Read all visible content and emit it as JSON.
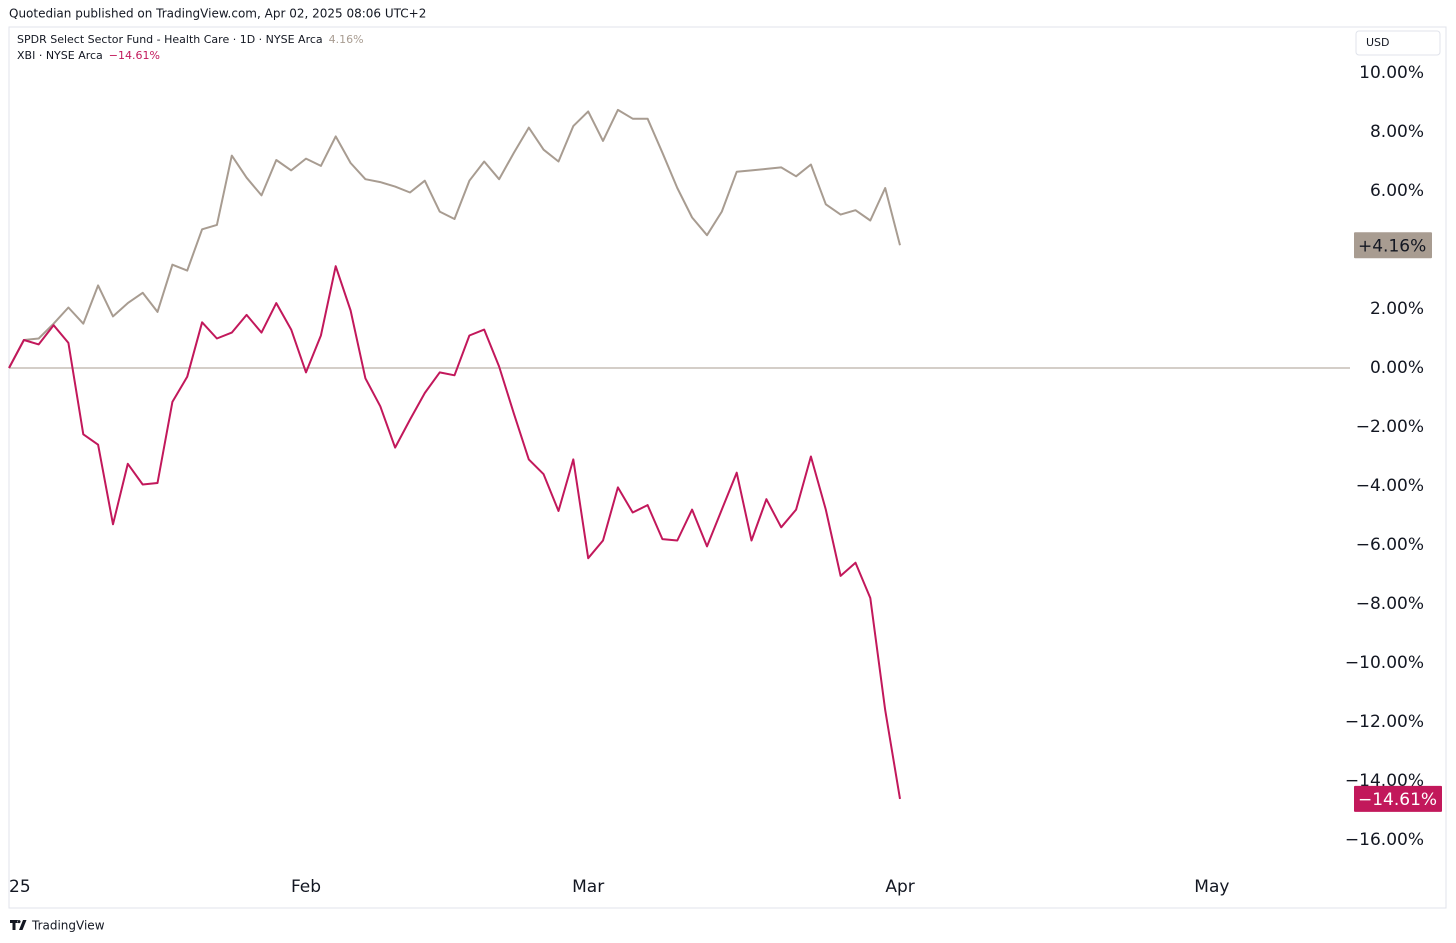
{
  "header": "Quotedian published on TradingView.com, Apr 02, 2025 08:06 UTC+2",
  "footer": "TradingView",
  "chart_data": {
    "type": "line",
    "currency": "USD",
    "x": [
      0,
      1,
      2,
      3,
      4,
      5,
      6,
      7,
      8,
      9,
      10,
      11,
      12,
      13,
      14,
      15,
      16,
      17,
      18,
      19,
      20,
      21,
      22,
      23,
      24,
      25,
      26,
      27,
      28,
      29,
      30,
      31,
      32,
      33,
      34,
      35,
      36,
      37,
      38,
      39,
      40,
      41,
      42,
      43,
      44,
      45,
      46,
      47,
      48,
      49,
      50,
      51,
      52,
      53,
      54,
      55,
      56,
      57,
      58,
      59,
      60
    ],
    "xlim": [
      0,
      90.3
    ],
    "xticks": [
      {
        "value": 0,
        "label": "25"
      },
      {
        "value": 20,
        "label": "Feb"
      },
      {
        "value": 39,
        "label": "Mar"
      },
      {
        "value": 60,
        "label": "Apr"
      },
      {
        "value": 81,
        "label": "May"
      }
    ],
    "ylim": [
      -17.02,
      11.56
    ],
    "yticks": [
      {
        "value": 10,
        "label": "10.00%"
      },
      {
        "value": 8,
        "label": "8.00%"
      },
      {
        "value": 6,
        "label": "6.00%"
      },
      {
        "value": 4,
        "label": "4.00%"
      },
      {
        "value": 2,
        "label": "2.00%"
      },
      {
        "value": 0,
        "label": "0.00%"
      },
      {
        "value": -2,
        "label": "−2.00%"
      },
      {
        "value": -4,
        "label": "−4.00%"
      },
      {
        "value": -6,
        "label": "−6.00%"
      },
      {
        "value": -8,
        "label": "−8.00%"
      },
      {
        "value": -10,
        "label": "−10.00%"
      },
      {
        "value": -12,
        "label": "−12.00%"
      },
      {
        "value": -14,
        "label": "−14.00%"
      },
      {
        "value": -16,
        "label": "−16.00%"
      }
    ],
    "baseline": 0,
    "series": [
      {
        "name": "SPDR Select Sector Fund - Health Care · 1D · NYSE Arca",
        "color": "#a89c91",
        "legend_label": "4.16%",
        "badge_label": "+4.16%",
        "values": [
          0,
          0.95,
          1.0,
          1.5,
          2.05,
          1.5,
          2.8,
          1.75,
          2.2,
          2.55,
          1.9,
          3.5,
          3.3,
          4.7,
          4.85,
          7.2,
          6.45,
          5.85,
          7.05,
          6.7,
          7.1,
          6.85,
          7.85,
          6.95,
          6.4,
          6.3,
          6.15,
          5.95,
          6.35,
          5.3,
          5.05,
          6.35,
          7.0,
          6.4,
          7.3,
          8.15,
          7.4,
          7.0,
          8.2,
          8.7,
          7.7,
          8.75,
          8.45,
          8.45,
          7.3,
          6.1,
          5.1,
          4.5,
          5.3,
          6.65,
          6.7,
          6.75,
          6.8,
          6.5,
          6.9,
          5.55,
          5.2,
          5.35,
          5.0,
          6.1,
          4.16
        ]
      },
      {
        "name": "XBI · NYSE Arca",
        "color": "#c2185b",
        "legend_label": "−14.61%",
        "badge_label": "−14.61%",
        "values": [
          0,
          0.95,
          0.8,
          1.45,
          0.85,
          -2.25,
          -2.6,
          -5.3,
          -3.25,
          -3.95,
          -3.9,
          -1.15,
          -0.3,
          1.55,
          1.0,
          1.2,
          1.8,
          1.2,
          2.2,
          1.3,
          -0.15,
          1.1,
          3.45,
          1.95,
          -0.35,
          -1.3,
          -2.7,
          -1.75,
          -0.85,
          -0.15,
          -0.25,
          1.1,
          1.3,
          0.05,
          -1.55,
          -3.1,
          -3.6,
          -4.85,
          -3.1,
          -6.45,
          -5.85,
          -4.05,
          -4.9,
          -4.65,
          -5.8,
          -5.85,
          -4.8,
          -6.05,
          -4.8,
          -3.55,
          -5.85,
          -4.45,
          -5.4,
          -4.8,
          -3.0,
          -4.8,
          -7.05,
          -6.6,
          -7.8,
          -11.6,
          -14.61
        ]
      }
    ]
  }
}
